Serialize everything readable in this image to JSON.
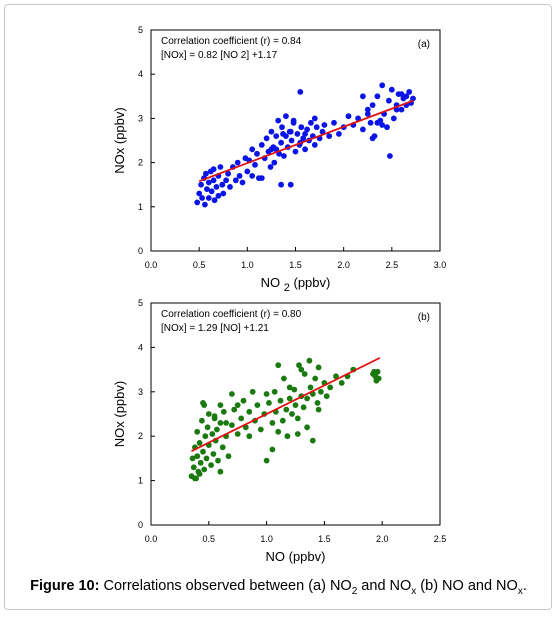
{
  "chart_data": [
    {
      "type": "scatter",
      "panel": "(a)",
      "xlabel": "NO 2 (ppbv)",
      "ylabel": "NOx (ppbv)",
      "xlim": [
        0,
        3
      ],
      "ylim": [
        0,
        5
      ],
      "xticks": [
        "0.0",
        "0.5",
        "1.0",
        "1.5",
        "2.0",
        "2.5",
        "3.0"
      ],
      "yticks": [
        "0",
        "1",
        "2",
        "3",
        "4",
        "5"
      ],
      "annotations": [
        "Correlation coefficient (r) = 0.84",
        "[NOx] = 0.82 [NO  2] +1.17"
      ],
      "point_color": "#0a14e6",
      "fit_color": "#e01010",
      "fit": {
        "slope": 0.82,
        "intercept": 1.17,
        "x_range": [
          0.5,
          2.72
        ]
      },
      "points": [
        [
          0.48,
          1.1
        ],
        [
          0.5,
          1.3
        ],
        [
          0.52,
          1.5
        ],
        [
          0.53,
          1.2
        ],
        [
          0.55,
          1.65
        ],
        [
          0.56,
          1.05
        ],
        [
          0.58,
          1.4
        ],
        [
          0.6,
          1.55
        ],
        [
          0.6,
          1.2
        ],
        [
          0.62,
          1.8
        ],
        [
          0.63,
          1.35
        ],
        [
          0.65,
          1.6
        ],
        [
          0.66,
          1.15
        ],
        [
          0.68,
          1.45
        ],
        [
          0.7,
          1.25
        ],
        [
          0.7,
          1.7
        ],
        [
          0.72,
          1.9
        ],
        [
          0.74,
          1.5
        ],
        [
          0.75,
          1.3
        ],
        [
          0.78,
          1.6
        ],
        [
          0.8,
          1.75
        ],
        [
          0.82,
          1.45
        ],
        [
          0.85,
          1.9
        ],
        [
          0.88,
          1.6
        ],
        [
          0.9,
          2.0
        ],
        [
          0.92,
          1.7
        ],
        [
          0.95,
          1.55
        ],
        [
          0.98,
          2.1
        ],
        [
          1.0,
          1.8
        ],
        [
          1.02,
          2.05
        ],
        [
          1.05,
          2.3
        ],
        [
          1.08,
          1.95
        ],
        [
          1.1,
          2.2
        ],
        [
          1.12,
          1.65
        ],
        [
          1.15,
          2.4
        ],
        [
          1.18,
          2.1
        ],
        [
          1.2,
          2.55
        ],
        [
          1.22,
          2.25
        ],
        [
          1.24,
          1.9
        ],
        [
          1.25,
          2.7
        ],
        [
          1.27,
          2.35
        ],
        [
          1.28,
          2.0
        ],
        [
          1.3,
          2.6
        ],
        [
          1.32,
          2.95
        ],
        [
          1.33,
          2.2
        ],
        [
          1.35,
          2.45
        ],
        [
          1.36,
          2.8
        ],
        [
          1.38,
          2.15
        ],
        [
          1.4,
          2.6
        ],
        [
          1.4,
          3.05
        ],
        [
          1.42,
          2.35
        ],
        [
          1.44,
          2.7
        ],
        [
          1.45,
          1.5
        ],
        [
          1.46,
          2.5
        ],
        [
          1.48,
          2.9
        ],
        [
          1.5,
          2.25
        ],
        [
          1.52,
          2.65
        ],
        [
          1.54,
          2.4
        ],
        [
          1.55,
          3.6
        ],
        [
          1.56,
          2.8
        ],
        [
          1.58,
          2.55
        ],
        [
          1.6,
          2.3
        ],
        [
          1.62,
          2.75
        ],
        [
          1.64,
          2.5
        ],
        [
          1.66,
          2.9
        ],
        [
          1.68,
          2.6
        ],
        [
          1.7,
          2.4
        ],
        [
          1.72,
          2.8
        ],
        [
          1.75,
          2.55
        ],
        [
          1.78,
          2.7
        ],
        [
          1.8,
          2.85
        ],
        [
          1.85,
          2.6
        ],
        [
          1.9,
          2.9
        ],
        [
          1.95,
          2.65
        ],
        [
          2.0,
          2.8
        ],
        [
          2.05,
          3.05
        ],
        [
          2.1,
          2.85
        ],
        [
          2.15,
          3.0
        ],
        [
          2.2,
          2.75
        ],
        [
          2.25,
          3.1
        ],
        [
          2.28,
          2.9
        ],
        [
          2.3,
          3.3
        ],
        [
          2.32,
          2.6
        ],
        [
          2.35,
          3.5
        ],
        [
          2.38,
          2.95
        ],
        [
          2.4,
          3.75
        ],
        [
          2.42,
          3.1
        ],
        [
          2.45,
          2.8
        ],
        [
          2.47,
          3.4
        ],
        [
          2.5,
          3.65
        ],
        [
          2.52,
          3.0
        ],
        [
          2.55,
          3.3
        ],
        [
          2.57,
          3.55
        ],
        [
          2.6,
          3.2
        ],
        [
          2.62,
          3.45
        ],
        [
          2.65,
          3.3
        ],
        [
          2.68,
          3.6
        ],
        [
          2.7,
          3.35
        ],
        [
          2.72,
          3.45
        ],
        [
          2.48,
          2.15
        ],
        [
          2.3,
          2.55
        ],
        [
          2.2,
          3.5
        ],
        [
          2.25,
          3.2
        ],
        [
          2.55,
          3.2
        ],
        [
          2.6,
          3.55
        ],
        [
          2.65,
          3.5
        ],
        [
          2.4,
          2.85
        ],
        [
          2.35,
          2.9
        ],
        [
          0.57,
          1.75
        ],
        [
          0.65,
          1.85
        ],
        [
          1.15,
          1.65
        ],
        [
          1.05,
          1.7
        ],
        [
          1.35,
          1.5
        ],
        [
          1.48,
          2.95
        ],
        [
          1.6,
          2.65
        ],
        [
          1.7,
          3.0
        ],
        [
          1.25,
          2.3
        ],
        [
          1.45,
          2.7
        ],
        [
          1.55,
          2.45
        ],
        [
          1.3,
          2.3
        ],
        [
          1.37,
          2.65
        ]
      ]
    },
    {
      "type": "scatter",
      "panel": "(b)",
      "xlabel": "NO (ppbv)",
      "ylabel": "NOx (ppbv)",
      "xlim": [
        0,
        2.5
      ],
      "ylim": [
        0,
        5
      ],
      "xticks": [
        "0.0",
        "0.5",
        "1.0",
        "1.5",
        "2.0",
        "2.5"
      ],
      "yticks": [
        "0",
        "1",
        "2",
        "3",
        "4",
        "5"
      ],
      "annotations": [
        "Correlation coefficient (r) = 0.80",
        "[NOx] = 1.29 [NO] +1.21"
      ],
      "point_color": "#1a7a10",
      "fit_color": "#e01010",
      "fit": {
        "slope": 1.29,
        "intercept": 1.21,
        "x_range": [
          0.35,
          1.98
        ]
      },
      "points": [
        [
          0.35,
          1.1
        ],
        [
          0.36,
          1.5
        ],
        [
          0.37,
          1.3
        ],
        [
          0.38,
          1.75
        ],
        [
          0.39,
          1.05
        ],
        [
          0.4,
          1.55
        ],
        [
          0.4,
          2.1
        ],
        [
          0.41,
          1.2
        ],
        [
          0.42,
          1.85
        ],
        [
          0.43,
          1.4
        ],
        [
          0.44,
          2.35
        ],
        [
          0.45,
          1.65
        ],
        [
          0.45,
          2.75
        ],
        [
          0.46,
          1.25
        ],
        [
          0.47,
          2.0
        ],
        [
          0.48,
          1.5
        ],
        [
          0.49,
          2.2
        ],
        [
          0.5,
          1.8
        ],
        [
          0.5,
          2.5
        ],
        [
          0.52,
          1.35
        ],
        [
          0.53,
          2.05
        ],
        [
          0.54,
          1.6
        ],
        [
          0.55,
          2.4
        ],
        [
          0.56,
          1.9
        ],
        [
          0.57,
          2.15
        ],
        [
          0.58,
          1.45
        ],
        [
          0.6,
          2.3
        ],
        [
          0.62,
          1.75
        ],
        [
          0.63,
          2.55
        ],
        [
          0.65,
          2.0
        ],
        [
          0.67,
          1.55
        ],
        [
          0.7,
          2.25
        ],
        [
          0.72,
          2.6
        ],
        [
          0.75,
          2.05
        ],
        [
          0.78,
          2.4
        ],
        [
          0.8,
          2.8
        ],
        [
          0.82,
          2.2
        ],
        [
          0.85,
          2.55
        ],
        [
          0.88,
          3.0
        ],
        [
          0.9,
          2.35
        ],
        [
          0.92,
          2.7
        ],
        [
          0.95,
          2.15
        ],
        [
          0.98,
          2.5
        ],
        [
          1.0,
          1.45
        ],
        [
          1.02,
          2.75
        ],
        [
          1.05,
          2.3
        ],
        [
          1.07,
          3.0
        ],
        [
          1.08,
          2.55
        ],
        [
          1.1,
          2.1
        ],
        [
          1.12,
          2.8
        ],
        [
          1.14,
          2.35
        ],
        [
          1.15,
          3.3
        ],
        [
          1.17,
          2.6
        ],
        [
          1.18,
          2.0
        ],
        [
          1.2,
          2.85
        ],
        [
          1.22,
          2.5
        ],
        [
          1.24,
          3.05
        ],
        [
          1.25,
          2.7
        ],
        [
          1.27,
          2.4
        ],
        [
          1.28,
          3.6
        ],
        [
          1.3,
          2.9
        ],
        [
          1.32,
          2.65
        ],
        [
          1.33,
          3.4
        ],
        [
          1.35,
          2.85
        ],
        [
          1.37,
          3.7
        ],
        [
          1.38,
          3.1
        ],
        [
          1.4,
          2.95
        ],
        [
          1.42,
          3.3
        ],
        [
          1.44,
          2.75
        ],
        [
          1.45,
          3.55
        ],
        [
          1.47,
          3.0
        ],
        [
          1.5,
          3.2
        ],
        [
          1.52,
          2.9
        ],
        [
          1.55,
          3.1
        ],
        [
          1.6,
          3.35
        ],
        [
          1.65,
          3.2
        ],
        [
          1.7,
          3.35
        ],
        [
          1.75,
          3.5
        ],
        [
          1.92,
          3.4
        ],
        [
          1.94,
          3.35
        ],
        [
          1.95,
          3.25
        ],
        [
          1.96,
          3.45
        ],
        [
          1.97,
          3.3
        ],
        [
          1.93,
          3.45
        ],
        [
          1.27,
          2.05
        ],
        [
          1.35,
          2.2
        ],
        [
          1.4,
          1.9
        ],
        [
          0.6,
          1.2
        ],
        [
          0.38,
          1.05
        ],
        [
          0.42,
          1.15
        ],
        [
          0.46,
          2.7
        ],
        [
          0.55,
          2.45
        ],
        [
          0.65,
          2.3
        ],
        [
          0.75,
          2.7
        ],
        [
          0.85,
          2.0
        ],
        [
          1.05,
          1.7
        ],
        [
          1.1,
          3.6
        ],
        [
          1.2,
          3.1
        ],
        [
          1.3,
          3.5
        ],
        [
          1.45,
          2.6
        ],
        [
          0.7,
          2.95
        ],
        [
          0.6,
          2.7
        ],
        [
          1.0,
          2.95
        ]
      ]
    }
  ],
  "caption": {
    "label": "Figure 10:",
    "text_1": " Correlations observed between (a) NO",
    "sub_1": "2",
    "text_2": " and NO",
    "sub_2": "x",
    "text_3": " (b) NO and NO",
    "sub_3": "x",
    "text_4": "."
  }
}
